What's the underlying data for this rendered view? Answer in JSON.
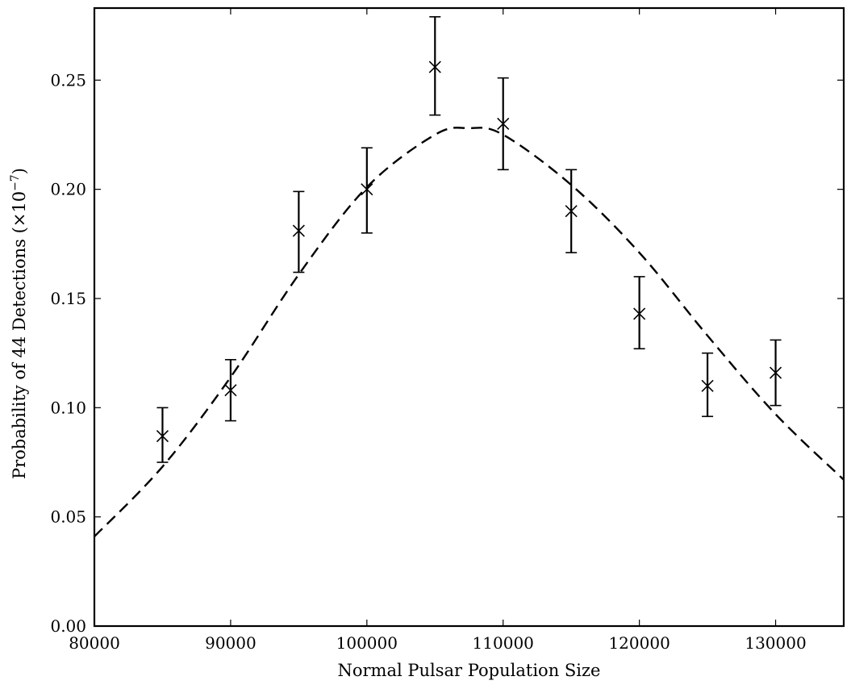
{
  "chart_data": {
    "type": "scatter",
    "title": "",
    "xlabel": "Normal Pulsar Population Size",
    "ylabel": "Probability of 44 Detections (×10",
    "ylabel_exponent": "−7",
    "ylabel_suffix": ")",
    "xlim": [
      80000,
      135000
    ],
    "ylim": [
      0.0,
      0.283
    ],
    "x_ticks": [
      80000,
      90000,
      100000,
      110000,
      120000,
      130000
    ],
    "x_tick_labels": [
      "80000",
      "90000",
      "100000",
      "110000",
      "120000",
      "130000"
    ],
    "y_ticks": [
      0.0,
      0.05,
      0.1,
      0.15,
      0.2,
      0.25
    ],
    "y_tick_labels": [
      "0.00",
      "0.05",
      "0.10",
      "0.15",
      "0.20",
      "0.25"
    ],
    "grid": false,
    "series": [
      {
        "kind": "points_with_errorbars",
        "marker": "x",
        "color": "#000000",
        "points": [
          {
            "x": 85000,
            "y": 0.087,
            "yerr_low": 0.075,
            "yerr_high": 0.1
          },
          {
            "x": 90000,
            "y": 0.108,
            "yerr_low": 0.094,
            "yerr_high": 0.122
          },
          {
            "x": 95000,
            "y": 0.181,
            "yerr_low": 0.162,
            "yerr_high": 0.199
          },
          {
            "x": 100000,
            "y": 0.2,
            "yerr_low": 0.18,
            "yerr_high": 0.219
          },
          {
            "x": 105000,
            "y": 0.256,
            "yerr_low": 0.234,
            "yerr_high": 0.279
          },
          {
            "x": 110000,
            "y": 0.23,
            "yerr_low": 0.209,
            "yerr_high": 0.251
          },
          {
            "x": 115000,
            "y": 0.19,
            "yerr_low": 0.171,
            "yerr_high": 0.209
          },
          {
            "x": 120000,
            "y": 0.143,
            "yerr_low": 0.127,
            "yerr_high": 0.16
          },
          {
            "x": 125000,
            "y": 0.11,
            "yerr_low": 0.096,
            "yerr_high": 0.125
          },
          {
            "x": 130000,
            "y": 0.116,
            "yerr_low": 0.101,
            "yerr_high": 0.131
          }
        ]
      },
      {
        "kind": "fit_curve",
        "style": "dashed",
        "color": "#000000",
        "x": [
          80000,
          85000,
          90000,
          95000,
          100000,
          105000,
          107500,
          110000,
          115000,
          120000,
          125000,
          130000,
          135000
        ],
        "y": [
          0.041,
          0.073,
          0.114,
          0.161,
          0.201,
          0.225,
          0.228,
          0.225,
          0.202,
          0.171,
          0.133,
          0.097,
          0.067
        ]
      }
    ]
  }
}
